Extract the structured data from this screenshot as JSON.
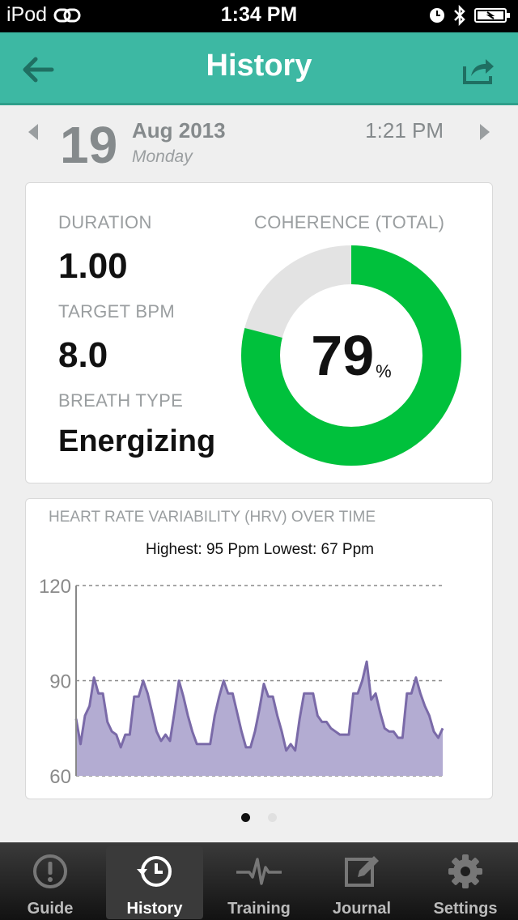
{
  "status_bar": {
    "carrier": "iPod",
    "time": "1:34 PM"
  },
  "nav": {
    "title": "History"
  },
  "session": {
    "day": "19",
    "month_year": "Aug 2013",
    "weekday": "Monday",
    "time": "1:21 PM"
  },
  "summary": {
    "duration_label": "DURATION",
    "duration_value": "1.00",
    "target_bpm_label": "TARGET BPM",
    "target_bpm_value": "8.0",
    "breath_type_label": "BREATH TYPE",
    "breath_type_value": "Energizing",
    "coherence_label": "COHERENCE (TOTAL)",
    "coherence_value": "79",
    "coherence_unit": "%",
    "coherence_fraction": 0.79,
    "colors": {
      "ring_fill": "#00c13c",
      "ring_track": "#e3e3e3"
    }
  },
  "hrv": {
    "title": "HEART RATE VARIABILITY (HRV) OVER TIME",
    "stats": "Highest: 95 Ppm Lowest: 67 Ppm"
  },
  "chart_data": {
    "type": "area",
    "ylim": [
      60,
      120
    ],
    "yticks": [
      "120",
      "90",
      "60"
    ],
    "grid": true,
    "color": "#7a6aa8",
    "fill": "#b3acd2",
    "y": [
      78,
      70,
      79,
      82,
      91,
      86,
      86,
      77,
      74,
      73,
      69,
      73,
      73,
      85,
      85,
      90,
      86,
      80,
      74,
      71,
      73,
      71,
      80,
      90,
      85,
      79,
      74,
      70,
      70,
      70,
      70,
      79,
      85,
      90,
      86,
      86,
      80,
      74,
      69,
      69,
      74,
      81,
      89,
      85,
      85,
      79,
      74,
      68,
      70,
      68,
      78,
      86,
      86,
      86,
      79,
      77,
      77,
      75,
      74,
      73,
      73,
      73,
      86,
      86,
      90,
      96,
      84,
      86,
      80,
      75,
      74,
      74,
      72,
      72,
      86,
      86,
      91,
      86,
      82,
      79,
      74,
      72,
      75
    ]
  },
  "page_dots": {
    "count": 2,
    "active": 0
  },
  "tabs": [
    {
      "label": "Guide",
      "icon": "exclamation-circle-icon"
    },
    {
      "label": "History",
      "icon": "history-clock-icon"
    },
    {
      "label": "Training",
      "icon": "heartbeat-icon"
    },
    {
      "label": "Journal",
      "icon": "pencil-edit-icon"
    },
    {
      "label": "Settings",
      "icon": "gear-icon"
    }
  ],
  "active_tab": 1
}
